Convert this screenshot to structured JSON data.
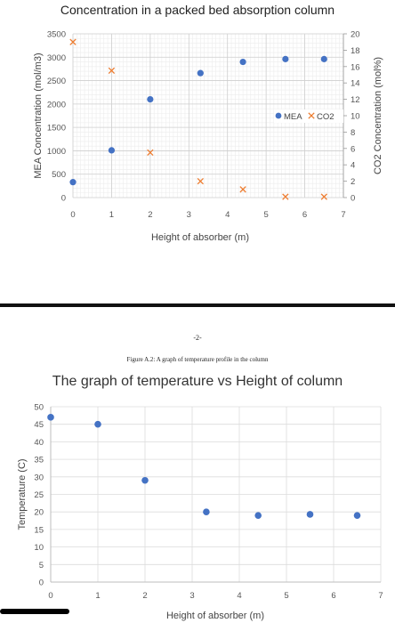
{
  "page": {
    "page_number": "-2-",
    "figure_caption": "Figure A.2: A graph of temperature profile in the column"
  },
  "chart_data": [
    {
      "type": "scatter",
      "title": "Concentration in a packed bed absorption column",
      "xlabel": "Height of absorber (m)",
      "ylabel": "MEA Concentration (mol/m3)",
      "y2label": "CO2 Concentration (mol%)",
      "xlim": [
        0,
        7
      ],
      "ylim": [
        0,
        3500
      ],
      "y2lim": [
        0,
        20
      ],
      "xticks": [
        "0",
        "1",
        "2",
        "3",
        "4",
        "5",
        "6",
        "7"
      ],
      "yticks": [
        "0",
        "500",
        "1000",
        "1500",
        "2000",
        "2500",
        "3000",
        "3500"
      ],
      "y2ticks": [
        "0",
        "2",
        "4",
        "6",
        "8",
        "10",
        "12",
        "14",
        "16",
        "18",
        "20"
      ],
      "grid": true,
      "legend_position": "right-middle",
      "series": [
        {
          "name": "MEA",
          "axis": "left",
          "marker": "circle",
          "color": "#4472C4",
          "x": [
            0,
            1,
            2,
            3.3,
            4.4,
            5.5,
            6.5
          ],
          "y": [
            330,
            1010,
            2100,
            2660,
            2900,
            2960,
            2960
          ]
        },
        {
          "name": "CO2",
          "axis": "right",
          "marker": "x",
          "color": "#ED7D31",
          "x": [
            0,
            1,
            2,
            3.3,
            4.4,
            5.5,
            6.5
          ],
          "y": [
            19.0,
            15.5,
            5.5,
            2.0,
            1.0,
            0.1,
            0.1
          ]
        }
      ]
    },
    {
      "type": "scatter",
      "title": "The graph of temperature vs Height of column",
      "xlabel": "Height of absorber (m)",
      "ylabel": "Temperature (C)",
      "xlim": [
        0,
        7
      ],
      "ylim": [
        0,
        50
      ],
      "xticks": [
        "0",
        "1",
        "2",
        "3",
        "4",
        "5",
        "6",
        "7"
      ],
      "yticks": [
        "0",
        "5",
        "10",
        "15",
        "20",
        "25",
        "30",
        "35",
        "40",
        "45",
        "50"
      ],
      "grid": true,
      "series": [
        {
          "marker": "circle",
          "color": "#4472C4",
          "x": [
            0,
            1,
            2,
            3.3,
            4.4,
            5.5,
            6.5
          ],
          "y": [
            47,
            45,
            29,
            20,
            19,
            19.3,
            19
          ]
        }
      ]
    }
  ]
}
